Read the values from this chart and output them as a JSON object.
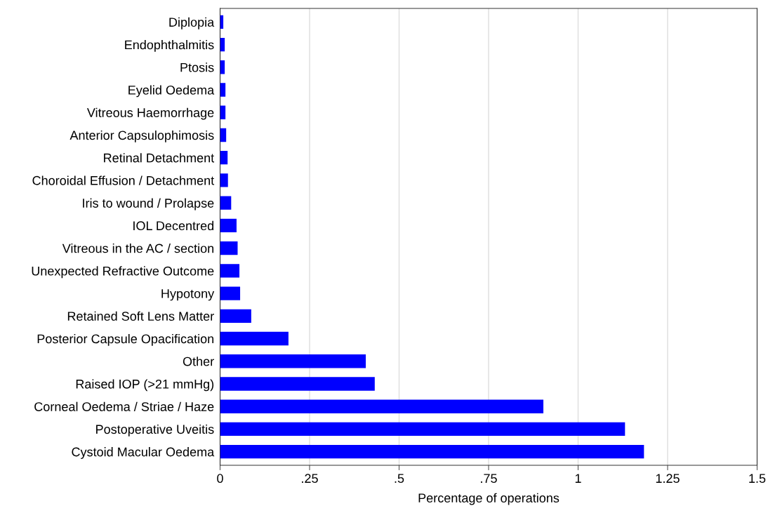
{
  "chart_data": {
    "type": "bar",
    "orientation": "horizontal",
    "xlabel": "Percentage of operations",
    "categories": [
      "Diplopia",
      "Endophthalmitis",
      "Ptosis",
      "Eyelid Oedema",
      "Vitreous Haemorrhage",
      "Anterior Capsulophimosis",
      "Retinal Detachment",
      "Choroidal Effusion / Detachment",
      "Iris to wound / Prolapse",
      "IOL Decentred",
      "Vitreous in the AC / section",
      "Unexpected Refractive Outcome",
      "Hypotony",
      "Retained Soft Lens Matter",
      "Posterior Capsule Opacification",
      "Other",
      "Raised IOP (>21 mmHg)",
      "Corneal Oedema / Striae / Haze",
      "Postoperative Uveitis",
      "Cystoid Macular Oedema"
    ],
    "values": [
      0.009,
      0.013,
      0.013,
      0.015,
      0.015,
      0.017,
      0.021,
      0.022,
      0.031,
      0.046,
      0.049,
      0.054,
      0.056,
      0.087,
      0.191,
      0.407,
      0.432,
      0.903,
      1.131,
      1.184
    ],
    "color": "#0000ff",
    "xlim": [
      0,
      1.5
    ],
    "xticks": [
      0,
      {
        "value": 0.25,
        "label": ".25"
      },
      {
        "value": 0.5,
        "label": ".5"
      },
      {
        "value": 0.75,
        "label": ".75"
      },
      1,
      {
        "value": 1.25,
        "label": "1.25"
      },
      {
        "value": 1.5,
        "label": "1.5"
      }
    ],
    "grid": "x"
  }
}
